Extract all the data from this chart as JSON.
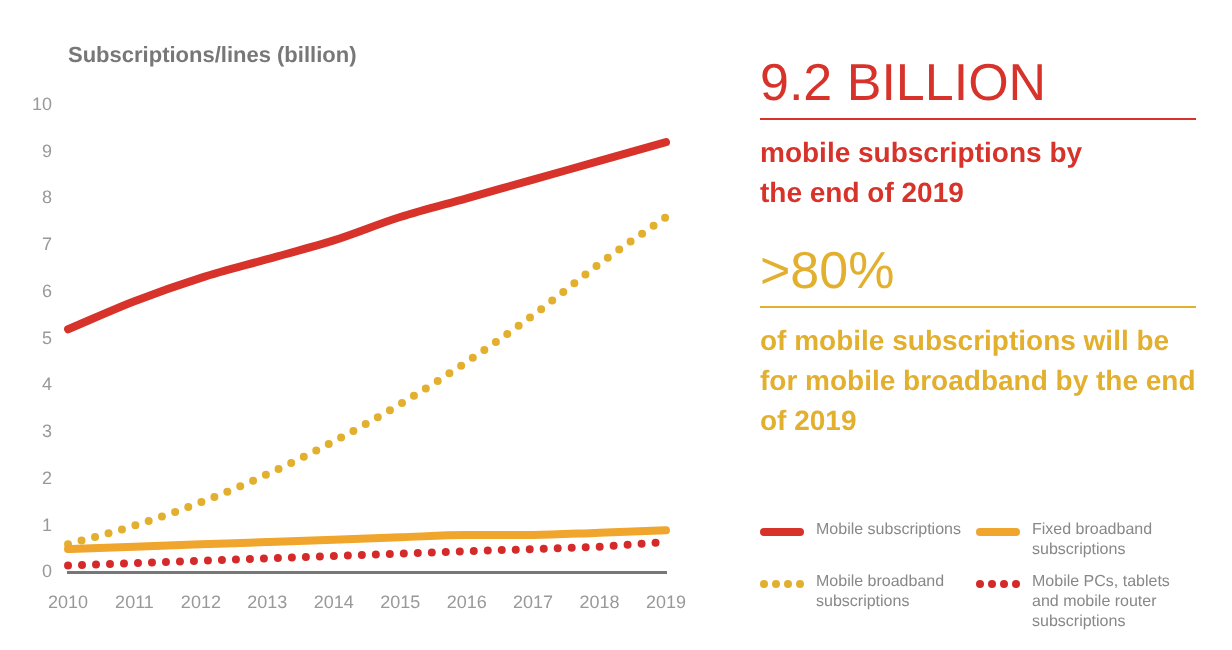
{
  "chart_data": {
    "type": "line",
    "ylabel": "Subscriptions/lines (billion)",
    "categories": [
      "2010",
      "2011",
      "2012",
      "2013",
      "2014",
      "2015",
      "2016",
      "2017",
      "2018",
      "2019"
    ],
    "series": [
      {
        "name": "Mobile subscriptions",
        "color": "#d7332b",
        "line_style": "solid",
        "values": [
          5.2,
          5.8,
          6.3,
          6.7,
          7.1,
          7.6,
          8.0,
          8.4,
          8.8,
          9.2
        ]
      },
      {
        "name": "Fixed broadband subscriptions",
        "color": "#f0a52c",
        "line_style": "solid",
        "values": [
          0.5,
          0.55,
          0.6,
          0.65,
          0.7,
          0.75,
          0.8,
          0.8,
          0.85,
          0.9
        ]
      },
      {
        "name": "Mobile broadband subscriptions",
        "color": "#e2b02e",
        "line_style": "dotted",
        "values": [
          0.6,
          1.0,
          1.5,
          2.1,
          2.8,
          3.6,
          4.5,
          5.5,
          6.6,
          7.6
        ]
      },
      {
        "name": "Mobile PCs, tablets and mobile router subscriptions",
        "color": "#d42a2a",
        "line_style": "dotted",
        "values": [
          0.15,
          0.2,
          0.25,
          0.3,
          0.35,
          0.4,
          0.45,
          0.5,
          0.55,
          0.65
        ]
      }
    ],
    "ylim": [
      0,
      10
    ],
    "yticks": [
      0,
      1,
      2,
      3,
      4,
      5,
      6,
      7,
      8,
      9,
      10
    ],
    "grid": false,
    "marker": "none",
    "legend": "bottom right",
    "annotations": [
      "9.2 BILLION",
      "mobile subscriptions by the end of 2019",
      ">80%",
      "of mobile subscriptions will be for mobile broadband by the end of 2019"
    ]
  }
}
